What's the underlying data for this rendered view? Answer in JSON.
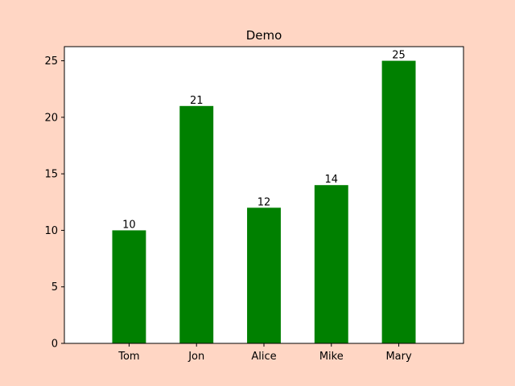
{
  "chart_data": {
    "type": "bar",
    "title": "Demo",
    "xlabel": "",
    "ylabel": "",
    "categories": [
      "Tom",
      "Jon",
      "Alice",
      "Mike",
      "Mary"
    ],
    "values": [
      10,
      21,
      12,
      14,
      25
    ],
    "ylim": [
      0,
      26.25
    ],
    "yticks": [
      0,
      5,
      10,
      15,
      20,
      25
    ],
    "grid": false,
    "data_labels": true,
    "colors": {
      "bar": "#008000",
      "figure_background": "#ffd6c4",
      "plot_background": "#ffffff",
      "axis": "#000000"
    }
  }
}
